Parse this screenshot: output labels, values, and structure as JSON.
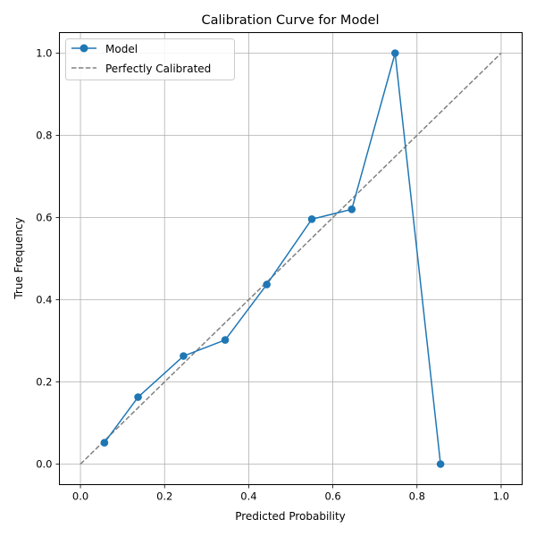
{
  "chart_data": {
    "type": "line",
    "title": "Calibration Curve for Model",
    "xlabel": "Predicted Probability",
    "ylabel": "True Frequency",
    "xlim": [
      -0.05,
      1.05
    ],
    "ylim": [
      -0.05,
      1.05
    ],
    "xticks": [
      "0.0",
      "0.2",
      "0.4",
      "0.6",
      "0.8",
      "1.0"
    ],
    "yticks": [
      "0.0",
      "0.2",
      "0.4",
      "0.6",
      "0.8",
      "1.0"
    ],
    "grid": true,
    "legend_position": "top-left",
    "series": [
      {
        "name": "Model",
        "style": "solid-with-markers",
        "color": "#1f77b4",
        "x": [
          0.057,
          0.137,
          0.245,
          0.344,
          0.443,
          0.55,
          0.645,
          0.748,
          0.856
        ],
        "y": [
          0.052,
          0.163,
          0.263,
          0.302,
          0.437,
          0.596,
          0.62,
          1.0,
          0.0
        ]
      },
      {
        "name": "Perfectly Calibrated",
        "style": "dashed",
        "color": "#808080",
        "x": [
          0.0,
          1.0
        ],
        "y": [
          0.0,
          1.0
        ]
      }
    ]
  }
}
